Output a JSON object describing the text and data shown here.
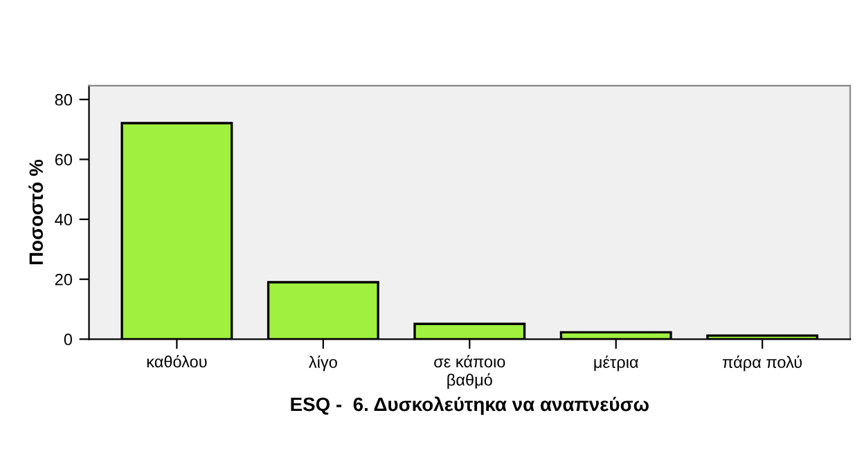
{
  "chart_data": {
    "type": "bar",
    "xlabel": "ESQ -  6. Δυσκολεύτηκα να αναπνεύσω",
    "ylabel": "Ποσοστό %",
    "categories": [
      "καθόλου",
      "λίγο",
      "σε κάποιο\nβαθμό",
      "μέτρια",
      "πάρα πολύ"
    ],
    "values": [
      72.1,
      19.0,
      5.1,
      2.3,
      1.2
    ],
    "color": "#a0f040",
    "ylim": [
      0,
      84.6
    ],
    "yticks": [
      0,
      20,
      40,
      60,
      80
    ],
    "grid": false
  }
}
